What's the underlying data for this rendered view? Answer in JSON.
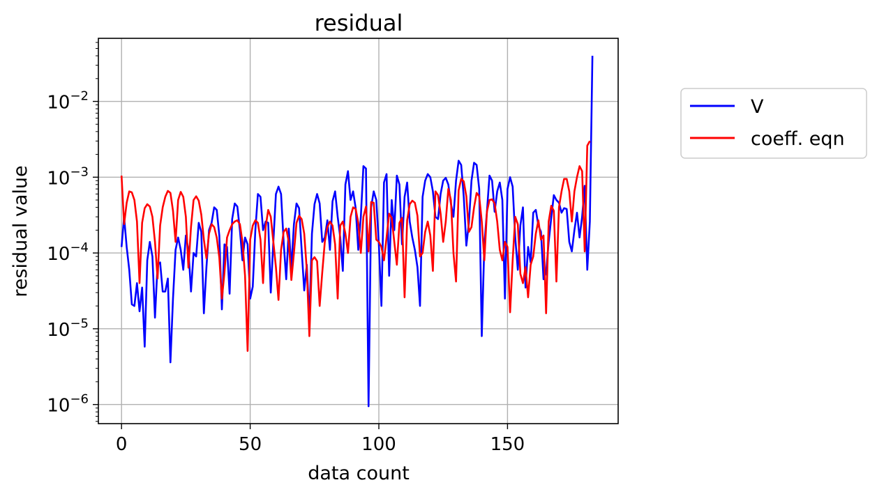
{
  "chart_data": {
    "type": "line",
    "title": "residual",
    "xlabel": "data count",
    "ylabel": "residual value",
    "yscale": "log",
    "xlim": [
      -9,
      193
    ],
    "ylim": [
      5.6e-07,
      0.068
    ],
    "xticks": [
      0,
      50,
      100,
      150
    ],
    "xtick_labels": [
      "0",
      "50",
      "100",
      "150"
    ],
    "yticks": [
      1e-06,
      1e-05,
      0.0001,
      0.001,
      0.01
    ],
    "ytick_labels": [
      {
        "base": "10",
        "exp": "−6"
      },
      {
        "base": "10",
        "exp": "−5"
      },
      {
        "base": "10",
        "exp": "−4"
      },
      {
        "base": "10",
        "exp": "−3"
      },
      {
        "base": "10",
        "exp": "−2"
      }
    ],
    "grid": true,
    "legend_position": "outside-right",
    "x_start": 0,
    "x_step": 1,
    "series": [
      {
        "name": "V",
        "color": "#0000ff",
        "values": [
          0.00012,
          0.0003,
          0.00012,
          6e-05,
          2.1e-05,
          2e-05,
          4e-05,
          1.7e-05,
          3.5e-05,
          5.8e-06,
          8e-05,
          0.00014,
          9e-05,
          1.4e-05,
          7e-05,
          7.5e-05,
          3.1e-05,
          3.1e-05,
          4.6e-05,
          3.6e-06,
          2.5e-05,
          0.00011,
          0.00016,
          0.00011,
          6e-05,
          0.00017,
          0.00011,
          3.1e-05,
          0.0001,
          9e-05,
          0.00025,
          0.00019,
          1.6e-05,
          6.5e-05,
          0.0002,
          0.00025,
          0.0004,
          0.00037,
          0.00017,
          1.8e-05,
          0.00013,
          0.00012,
          2.9e-05,
          0.00028,
          0.00045,
          0.00041,
          0.0002,
          8e-05,
          0.00016,
          0.00013,
          2.5e-05,
          3.6e-05,
          0.0002,
          0.0006,
          0.00055,
          0.0002,
          0.00026,
          0.00025,
          3e-05,
          0.00014,
          0.0006,
          0.00075,
          0.0006,
          0.00014,
          4.5e-05,
          0.00021,
          6.4e-05,
          0.00024,
          0.00045,
          0.00039,
          0.00011,
          3.2e-05,
          7e-05,
          1.3e-05,
          0.00018,
          0.00044,
          0.0006,
          0.00045,
          0.00014,
          0.00016,
          0.00027,
          0.00011,
          0.00048,
          0.00065,
          0.0003,
          0.00016,
          5.8e-05,
          0.0008,
          0.0012,
          0.0005,
          0.00065,
          0.00039,
          0.00011,
          0.0003,
          0.0014,
          0.0013,
          9.5e-07,
          0.0004,
          0.00065,
          0.0005,
          0.00013,
          2e-05,
          0.00085,
          0.0011,
          5e-05,
          0.0005,
          0.0002,
          0.00105,
          0.0008,
          0.00013,
          0.00055,
          0.00085,
          0.00026,
          0.00016,
          0.00011,
          6.5e-05,
          2e-05,
          0.00055,
          0.0009,
          0.0011,
          0.001,
          0.00065,
          0.0003,
          0.00028,
          0.0006,
          0.0009,
          0.00098,
          0.0008,
          0.00045,
          0.0003,
          0.0009,
          0.00165,
          0.00145,
          0.00055,
          0.000125,
          0.00025,
          0.0009,
          0.00155,
          0.00145,
          0.0007,
          8e-06,
          0.00013,
          0.00035,
          0.00105,
          0.0009,
          0.00035,
          0.00065,
          0.00085,
          0.0005,
          2.5e-05,
          0.0007,
          0.001,
          0.00075,
          0.00016,
          6e-05,
          0.00023,
          0.0004,
          3.5e-05,
          0.00012,
          7.5e-05,
          0.00034,
          0.00037,
          0.00023,
          0.00019,
          4.5e-05,
          5.5e-05,
          0.00014,
          0.00029,
          0.00058,
          0.0005,
          0.00046,
          0.00034,
          0.00039,
          0.00038,
          0.00014,
          0.000105,
          0.0002,
          0.00034,
          0.00016,
          0.0003,
          0.00077,
          6e-05,
          0.00026,
          0.04
        ]
      },
      {
        "name": "coeff. eqn",
        "color": "#ff0000",
        "values": [
          0.00105,
          0.00024,
          0.00046,
          0.00065,
          0.00063,
          0.0005,
          0.00026,
          4e-05,
          0.00025,
          0.00039,
          0.00044,
          0.00041,
          0.0003,
          0.00014,
          4.6e-05,
          0.00023,
          0.0004,
          0.00055,
          0.00066,
          0.00062,
          0.00036,
          0.00014,
          0.0005,
          0.00064,
          0.00055,
          0.0003,
          6.4e-05,
          0.00022,
          0.0005,
          0.00056,
          0.00049,
          0.00032,
          0.00015,
          8.5e-05,
          0.00018,
          0.00024,
          0.00022,
          0.00016,
          8.7e-05,
          2.5e-05,
          5.5e-05,
          0.00016,
          0.0002,
          0.00024,
          0.00026,
          0.00027,
          0.00024,
          0.00014,
          5e-05,
          5.1e-06,
          0.00015,
          0.00023,
          0.00027,
          0.00025,
          0.00015,
          4e-05,
          0.00022,
          0.00037,
          0.0003,
          0.00014,
          6.5e-05,
          2.4e-05,
          0.00011,
          0.00019,
          0.00021,
          0.00014,
          4.4e-05,
          0.0001,
          0.00025,
          0.00031,
          0.00028,
          0.00018,
          6e-05,
          8e-06,
          8e-05,
          8.8e-05,
          7.8e-05,
          2e-05,
          5.5e-05,
          0.00014,
          0.00022,
          0.00026,
          0.00023,
          0.00013,
          2.5e-05,
          0.00023,
          0.00026,
          0.00018,
          0.0001,
          0.0003,
          0.0004,
          0.00038,
          0.00025,
          0.0001,
          0.0003,
          0.00041,
          0.000105,
          0.00047,
          0.00046,
          0.00015,
          0.00014,
          0.00012,
          8e-05,
          0.00016,
          0.00033,
          0.00029,
          0.00014,
          7e-05,
          0.00025,
          0.00029,
          2.6e-05,
          0.00027,
          0.00044,
          0.00049,
          0.00046,
          0.00031,
          9e-05,
          0.0001,
          0.00019,
          0.00026,
          0.00017,
          5.8e-05,
          0.00065,
          0.00058,
          0.00033,
          0.00014,
          0.00026,
          0.0007,
          0.0005,
          0.0001,
          4.2e-05,
          0.00067,
          0.00095,
          0.00088,
          0.00056,
          0.00019,
          0.00022,
          0.0004,
          0.00062,
          0.00056,
          0.00026,
          8e-05,
          0.00035,
          0.0005,
          0.00051,
          0.00045,
          0.00026,
          0.00011,
          8e-05,
          0.00014,
          0.00012,
          1.65e-05,
          8e-05,
          0.0003,
          0.00024,
          5.3e-05,
          4e-05,
          6.5e-05,
          2.6e-05,
          7e-05,
          9e-05,
          0.00018,
          0.00027,
          0.00015,
          0.00017,
          1.6e-05,
          0.00026,
          0.00042,
          0.00036,
          4.2e-05,
          0.0004,
          0.00065,
          0.00095,
          0.00095,
          0.00065,
          0.00026,
          0.00065,
          0.001,
          0.0014,
          0.0012,
          0.000105,
          0.0026,
          0.003
        ]
      }
    ]
  }
}
